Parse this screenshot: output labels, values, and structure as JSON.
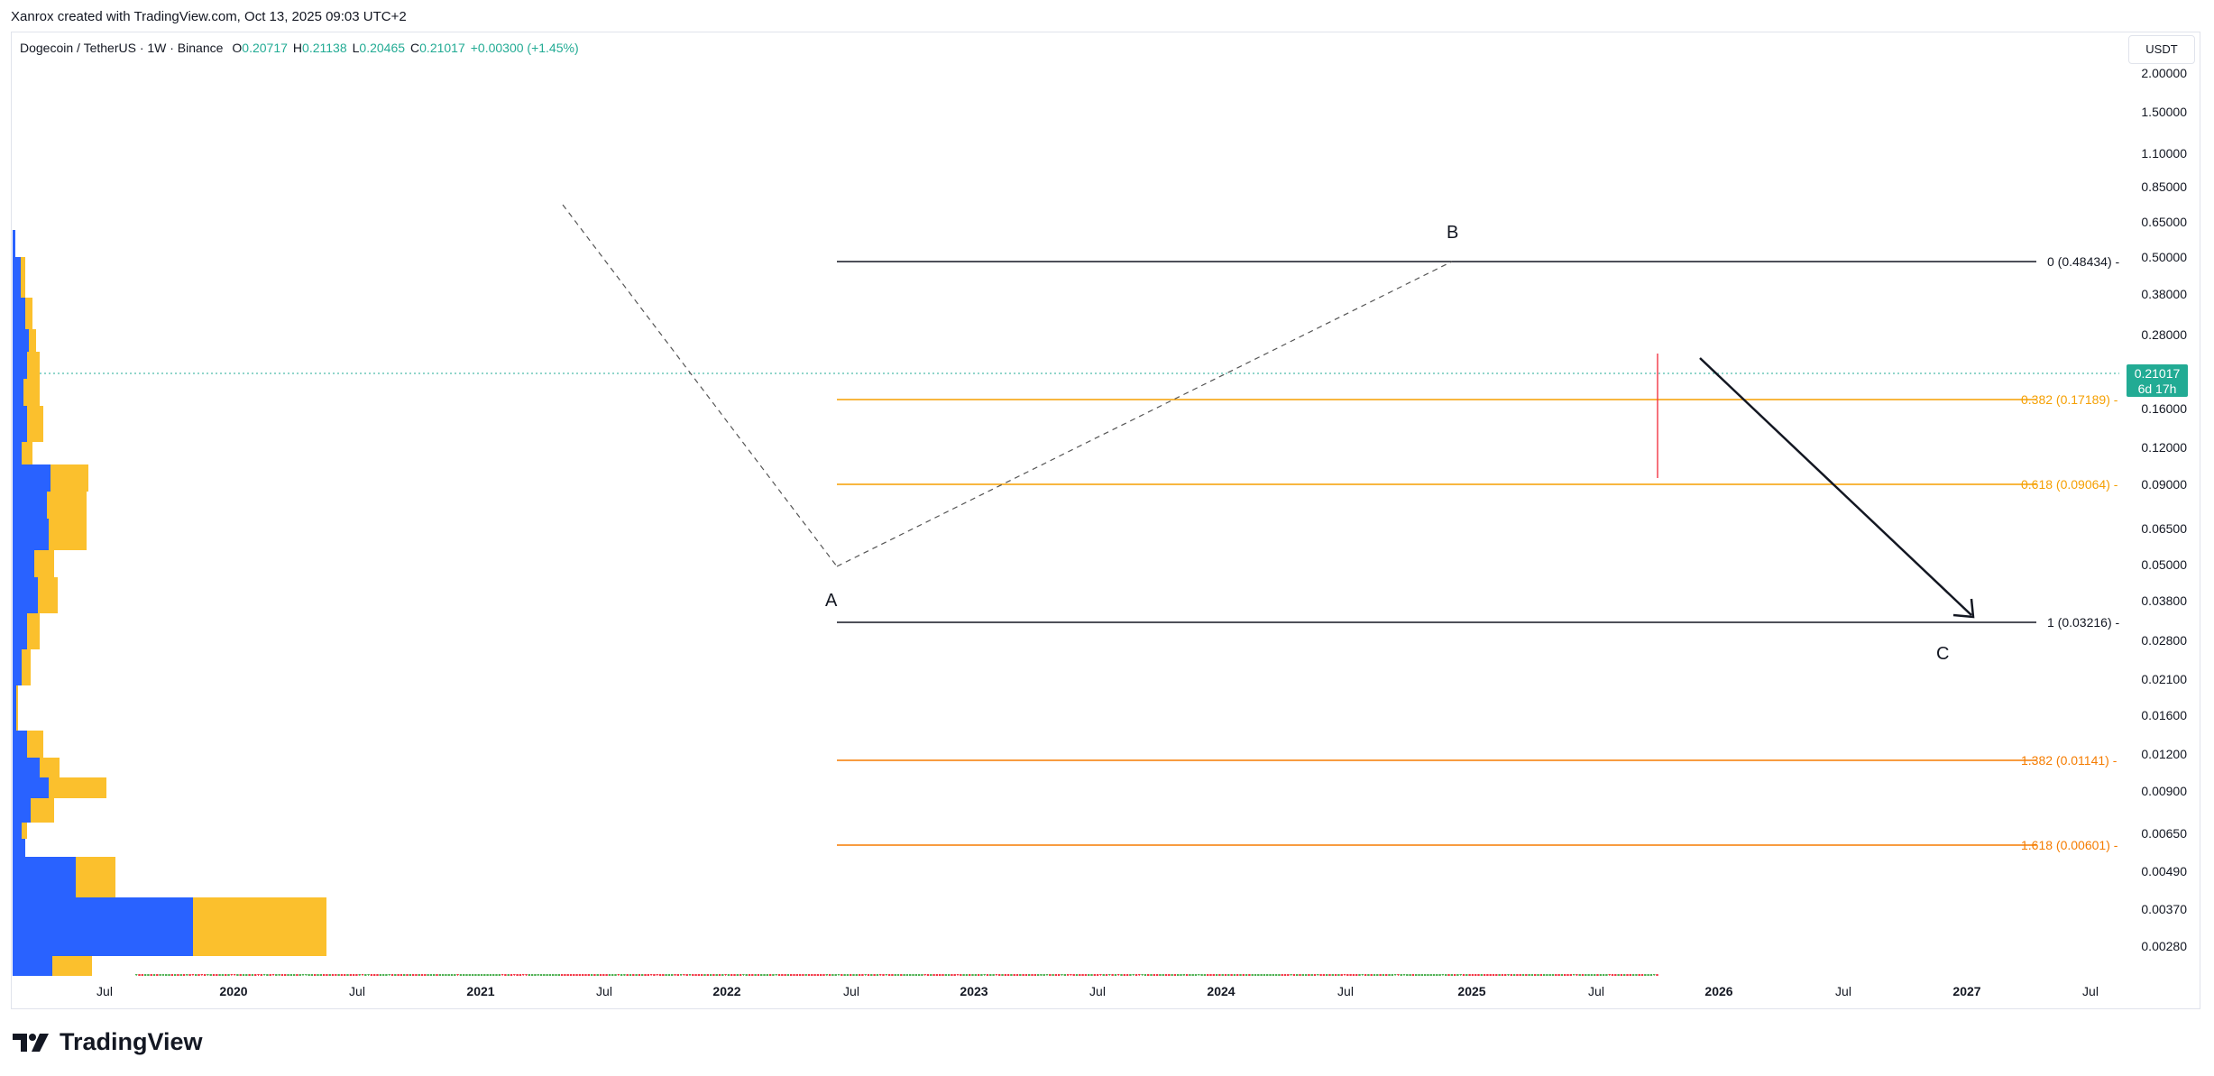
{
  "header": {
    "text": "Xanrox created with TradingView.com, Oct 13, 2025 09:03 UTC+2"
  },
  "legend": {
    "symbol": "Dogecoin / TetherUS · 1W · Binance",
    "open_label": "O",
    "open": "0.20717",
    "high_label": "H",
    "high": "0.21138",
    "low_label": "L",
    "low": "0.20465",
    "close_label": "C",
    "close": "0.21017",
    "change": "+0.00300 (+1.45%)"
  },
  "currency": "USDT",
  "price_tag": {
    "price": "0.21017",
    "countdown": "6d 17h",
    "color": "#22ab94"
  },
  "y_axis": [
    "2.00000",
    "1.50000",
    "1.10000",
    "0.85000",
    "0.65000",
    "0.50000",
    "0.38000",
    "0.28000",
    "0.21017",
    "0.16000",
    "0.12000",
    "0.09000",
    "0.06500",
    "0.05000",
    "0.03800",
    "0.02800",
    "0.02100",
    "0.01600",
    "0.01200",
    "0.00900",
    "0.00650",
    "0.00490",
    "0.00370",
    "0.00280"
  ],
  "x_axis": [
    {
      "label": "Jul",
      "year": false
    },
    {
      "label": "2020",
      "year": true
    },
    {
      "label": "Jul",
      "year": false
    },
    {
      "label": "2021",
      "year": true
    },
    {
      "label": "Jul",
      "year": false
    },
    {
      "label": "2022",
      "year": true
    },
    {
      "label": "Jul",
      "year": false
    },
    {
      "label": "2023",
      "year": true
    },
    {
      "label": "Jul",
      "year": false
    },
    {
      "label": "2024",
      "year": true
    },
    {
      "label": "Jul",
      "year": false
    },
    {
      "label": "2025",
      "year": true
    },
    {
      "label": "Jul",
      "year": false
    },
    {
      "label": "2026",
      "year": true
    },
    {
      "label": "Jul",
      "year": false
    },
    {
      "label": "2027",
      "year": true
    },
    {
      "label": "Jul",
      "year": false
    }
  ],
  "fib_levels": [
    {
      "label": "0 (0.48434)",
      "color": "#131722"
    },
    {
      "label": "0.382 (0.17189)",
      "color": "#f59f00"
    },
    {
      "label": "0.618 (0.09064)",
      "color": "#f59f00"
    },
    {
      "label": "1 (0.03216)",
      "color": "#131722"
    },
    {
      "label": "1.382 (0.01141)",
      "color": "#f57c00"
    },
    {
      "label": "1.618 (0.00601)",
      "color": "#f57c00"
    }
  ],
  "wave_labels": {
    "a": "A",
    "b": "B",
    "c": "C"
  },
  "colors": {
    "up": "#4caf50",
    "down": "#f23645",
    "vp_blue": "#2962ff",
    "vp_yellow": "#fbc02d"
  },
  "brand": {
    "name": "TradingView",
    "logo_icon": "tradingview-logo-icon"
  }
}
